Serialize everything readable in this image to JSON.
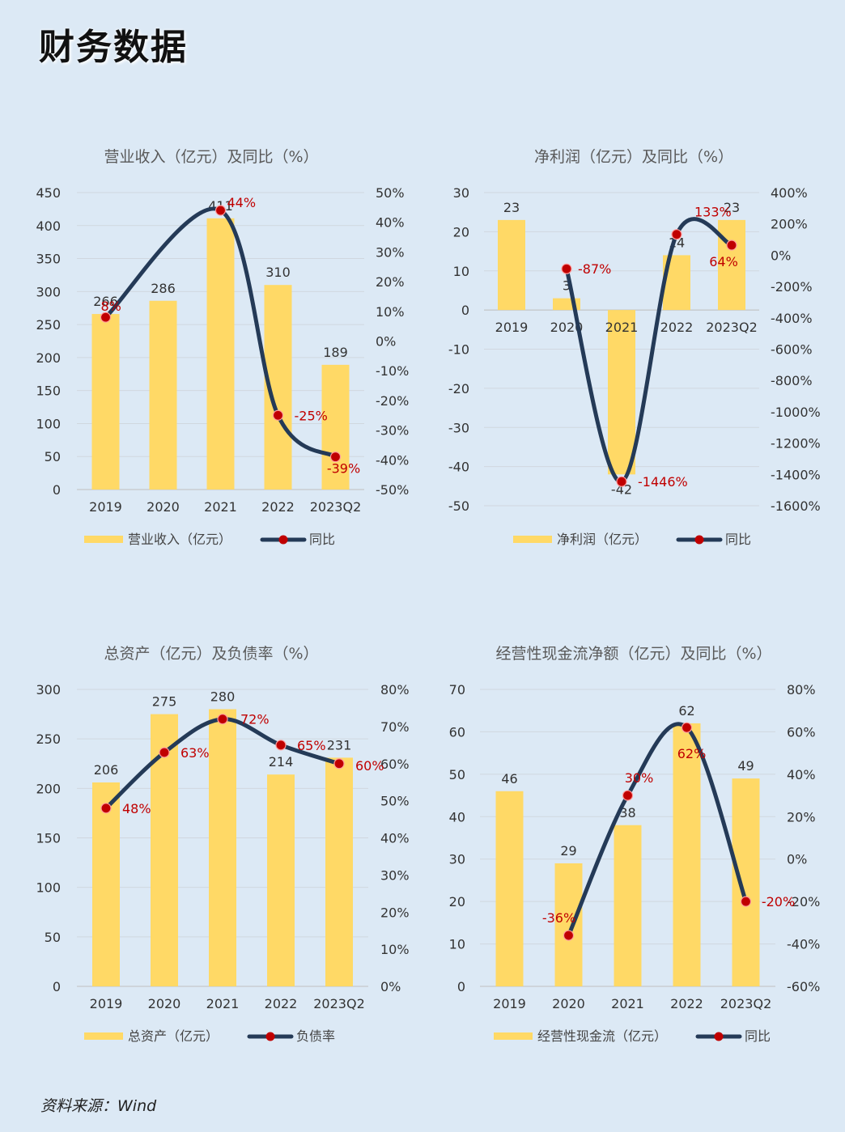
{
  "page": {
    "title": "财务数据",
    "source": "资料来源：Wind"
  },
  "colors": {
    "bar": "#ffd966",
    "line": "#243a57",
    "marker": "#c00000",
    "yoy_label": "#c00000",
    "axis_text": "#333333",
    "grid": "#d0d7df",
    "background": "#dce9f5"
  },
  "chart_data": [
    {
      "type": "bar+line",
      "title": "营业收入（亿元）及同比（%）",
      "categories": [
        "2019",
        "2020",
        "2021",
        "2022",
        "2023Q2"
      ],
      "series": [
        {
          "name": "营业收入（亿元）",
          "kind": "bar",
          "axis": "left",
          "values": [
            266,
            286,
            411,
            310,
            189
          ],
          "labels": [
            "266",
            "286",
            "411",
            "310",
            "189"
          ]
        },
        {
          "name": "同比",
          "kind": "line",
          "axis": "right",
          "values": [
            8,
            null,
            44,
            -25,
            -39
          ],
          "labels": [
            "8%",
            "",
            "44%",
            "-25%",
            "-39%"
          ]
        }
      ],
      "y_left": {
        "min": 0,
        "max": 450,
        "step": 50,
        "ticks": [
          "0",
          "50",
          "100",
          "150",
          "200",
          "250",
          "300",
          "350",
          "400",
          "450"
        ]
      },
      "y_right": {
        "min": -50,
        "max": 50,
        "step": 10,
        "ticks": [
          "-50%",
          "-40%",
          "-30%",
          "-20%",
          "-10%",
          "0%",
          "10%",
          "20%",
          "30%",
          "40%",
          "50%"
        ]
      },
      "grid": true,
      "legend": "bottom"
    },
    {
      "type": "bar+line",
      "title": "净利润（亿元）及同比（%）",
      "categories": [
        "2019",
        "2020",
        "2021",
        "2022",
        "2023Q2"
      ],
      "series": [
        {
          "name": "净利润（亿元）",
          "kind": "bar",
          "axis": "left",
          "values": [
            23,
            3,
            -42,
            14,
            23
          ],
          "labels": [
            "23",
            "3",
            "-42",
            "14",
            "23"
          ]
        },
        {
          "name": "同比",
          "kind": "line",
          "axis": "right",
          "values": [
            null,
            -87,
            -1446,
            133,
            64
          ],
          "labels": [
            "",
            "-87%",
            "-1446%",
            "133%",
            "64%"
          ]
        }
      ],
      "y_left": {
        "min": -50,
        "max": 30,
        "step": 10,
        "ticks": [
          "-50",
          "-40",
          "-30",
          "-20",
          "-10",
          "0",
          "10",
          "20",
          "30"
        ]
      },
      "y_right": {
        "min": -1600,
        "max": 400,
        "step": 200,
        "ticks": [
          "-1600%",
          "-1400%",
          "-1200%",
          "-1000%",
          "-800%",
          "-600%",
          "-400%",
          "-200%",
          "0%",
          "200%",
          "400%"
        ]
      },
      "grid": true,
      "legend": "bottom"
    },
    {
      "type": "bar+line",
      "title": "总资产（亿元）及负债率（%）",
      "categories": [
        "2019",
        "2020",
        "2021",
        "2022",
        "2023Q2"
      ],
      "series": [
        {
          "name": "总资产（亿元）",
          "kind": "bar",
          "axis": "left",
          "values": [
            206,
            275,
            280,
            214,
            231
          ],
          "labels": [
            "206",
            "275",
            "280",
            "214",
            "231"
          ]
        },
        {
          "name": "负债率",
          "kind": "line",
          "axis": "right",
          "values": [
            48,
            63,
            72,
            65,
            60
          ],
          "labels": [
            "48%",
            "63%",
            "72%",
            "65%",
            "60%"
          ]
        }
      ],
      "y_left": {
        "min": 0,
        "max": 300,
        "step": 50,
        "ticks": [
          "0",
          "50",
          "100",
          "150",
          "200",
          "250",
          "300"
        ]
      },
      "y_right": {
        "min": 0,
        "max": 80,
        "step": 10,
        "ticks": [
          "0%",
          "10%",
          "20%",
          "30%",
          "40%",
          "50%",
          "60%",
          "70%",
          "80%"
        ]
      },
      "grid": true,
      "legend": "bottom"
    },
    {
      "type": "bar+line",
      "title": "经营性现金流净额（亿元）及同比（%）",
      "categories": [
        "2019",
        "2020",
        "2021",
        "2022",
        "2023Q2"
      ],
      "series": [
        {
          "name": "经营性现金流（亿元）",
          "kind": "bar",
          "axis": "left",
          "values": [
            46,
            29,
            38,
            62,
            49
          ],
          "labels": [
            "46",
            "29",
            "38",
            "62",
            "49"
          ]
        },
        {
          "name": "同比",
          "kind": "line",
          "axis": "right",
          "values": [
            null,
            -36,
            30,
            62,
            -20
          ],
          "labels": [
            "",
            "-36%",
            "30%",
            "62%",
            "-20%"
          ]
        }
      ],
      "y_left": {
        "min": 0,
        "max": 70,
        "step": 10,
        "ticks": [
          "0",
          "10",
          "20",
          "30",
          "40",
          "50",
          "60",
          "70"
        ]
      },
      "y_right": {
        "min": -60,
        "max": 80,
        "step": 20,
        "ticks": [
          "-60%",
          "-40%",
          "-20%",
          "0%",
          "20%",
          "40%",
          "60%",
          "80%"
        ]
      },
      "grid": true,
      "legend": "bottom"
    }
  ]
}
